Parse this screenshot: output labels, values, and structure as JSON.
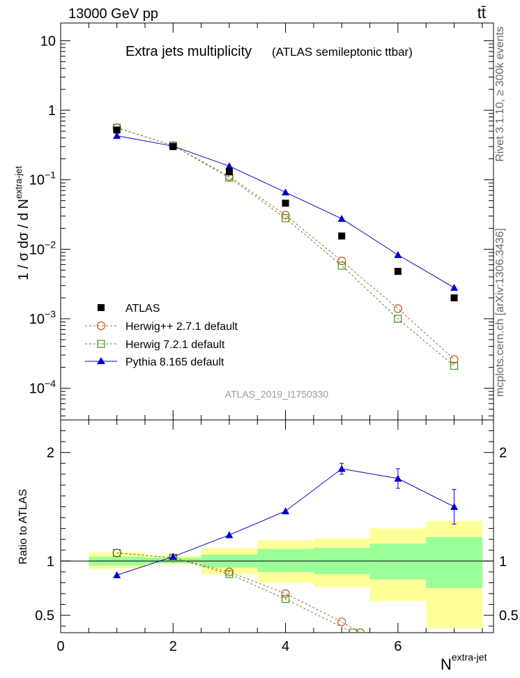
{
  "header": {
    "energy": "13000 GeV pp",
    "process": "tt̄",
    "side_top": "Rivet 3.1.10, ≥ 300k events",
    "side_bottom": "mcplots.cern.ch [arXiv:1306.3436]"
  },
  "colors": {
    "atlas": "#000000",
    "herwigpp": "#b35a1f",
    "herwig7": "#4e8a1c",
    "pythia": "#0000d0",
    "band_outer": "#ffff99",
    "band_inner": "#99ff99"
  },
  "chart_data": [
    {
      "type": "scatter",
      "title": "Extra jets multiplicity",
      "subtitle": "(ATLAS semileptonic ttbar)",
      "watermark": "ATLAS_2019_I1750330",
      "ylabel": "1 / σ dσ / d N",
      "ylabel_sup": "extra-jet",
      "yscale": "log",
      "ylim": [
        3.5e-05,
        18
      ],
      "xlim": [
        0,
        7.7
      ],
      "y_ticks": [
        {
          "v": 10,
          "base": "10",
          "exp": ""
        },
        {
          "v": 1,
          "base": "1",
          "exp": ""
        },
        {
          "v": 0.1,
          "base": "10",
          "exp": "−1"
        },
        {
          "v": 0.01,
          "base": "10",
          "exp": "−2"
        },
        {
          "v": 0.001,
          "base": "10",
          "exp": "−3"
        },
        {
          "v": 0.0001,
          "base": "10",
          "exp": "−4"
        }
      ],
      "series": [
        {
          "name": "ATLAS",
          "key": "atlas",
          "style": "square-filled",
          "x": [
            1,
            2,
            3,
            4,
            5,
            6,
            7
          ],
          "values": [
            0.52,
            0.3,
            0.13,
            0.046,
            0.0155,
            0.0048,
            0.002
          ]
        },
        {
          "name": "Herwig++ 2.7.1 default",
          "key": "herwigpp",
          "style": "circle-open",
          "x": [
            1,
            2,
            3,
            4,
            5,
            6,
            7
          ],
          "values": [
            0.56,
            0.31,
            0.112,
            0.031,
            0.0068,
            0.0014,
            0.00026
          ]
        },
        {
          "name": "Herwig 7.2.1 default",
          "key": "herwig7",
          "style": "square-open",
          "x": [
            1,
            2,
            3,
            4,
            5,
            6,
            7
          ],
          "values": [
            0.56,
            0.31,
            0.107,
            0.028,
            0.0058,
            0.001,
            0.00021
          ]
        },
        {
          "name": "Pythia 8.165 default",
          "key": "pythia",
          "style": "triangle",
          "x": [
            1,
            2,
            3,
            4,
            5,
            6,
            7
          ],
          "values": [
            0.43,
            0.305,
            0.157,
            0.066,
            0.0275,
            0.0083,
            0.0028
          ]
        }
      ]
    },
    {
      "type": "line",
      "ylabel": "Ratio to ATLAS",
      "xlabel": "N",
      "xlabel_sup": "extra-jet",
      "ylim": [
        0.34,
        2.3
      ],
      "xlim": [
        0,
        7.7
      ],
      "x_ticks": [
        0,
        2,
        4,
        6
      ],
      "y_ticks": [
        0.5,
        1,
        2
      ],
      "y_tick_labels": [
        "0.5",
        "1",
        "2"
      ],
      "bands": {
        "bins": [
          [
            0.5,
            1.5
          ],
          [
            1.5,
            2.5
          ],
          [
            2.5,
            3.5
          ],
          [
            3.5,
            4.5
          ],
          [
            4.5,
            5.5
          ],
          [
            5.5,
            6.5
          ],
          [
            6.5,
            7.5
          ]
        ],
        "outer": [
          [
            0.93,
            1.08
          ],
          [
            0.97,
            1.05
          ],
          [
            0.88,
            1.12
          ],
          [
            0.8,
            1.19
          ],
          [
            0.76,
            1.21
          ],
          [
            0.63,
            1.3
          ],
          [
            0.38,
            1.37
          ]
        ],
        "inner": [
          [
            0.96,
            1.04
          ],
          [
            0.98,
            1.03
          ],
          [
            0.94,
            1.06
          ],
          [
            0.9,
            1.11
          ],
          [
            0.88,
            1.12
          ],
          [
            0.83,
            1.16
          ],
          [
            0.75,
            1.22
          ]
        ]
      },
      "series": [
        {
          "name": "Herwig++ 2.7.1 default",
          "key": "herwigpp",
          "style": "circle-open",
          "x": [
            1,
            2,
            3,
            4,
            5,
            5.33
          ],
          "values": [
            1.075,
            1.03,
            0.9,
            0.7,
            0.44,
            0.34
          ]
        },
        {
          "name": "Herwig 7.2.1 default",
          "key": "herwig7",
          "style": "square-open",
          "x": [
            1,
            2,
            3,
            4,
            5.2
          ],
          "values": [
            1.075,
            1.03,
            0.88,
            0.65,
            0.34
          ]
        },
        {
          "name": "Pythia 8.165 default",
          "key": "pythia",
          "style": "triangle",
          "x": [
            1,
            2,
            3,
            4,
            5,
            6,
            7
          ],
          "values": [
            0.87,
            1.04,
            1.24,
            1.46,
            1.85,
            1.76,
            1.5
          ],
          "err": [
            0,
            0,
            0,
            0,
            0.05,
            0.09,
            0.16
          ]
        }
      ]
    }
  ]
}
